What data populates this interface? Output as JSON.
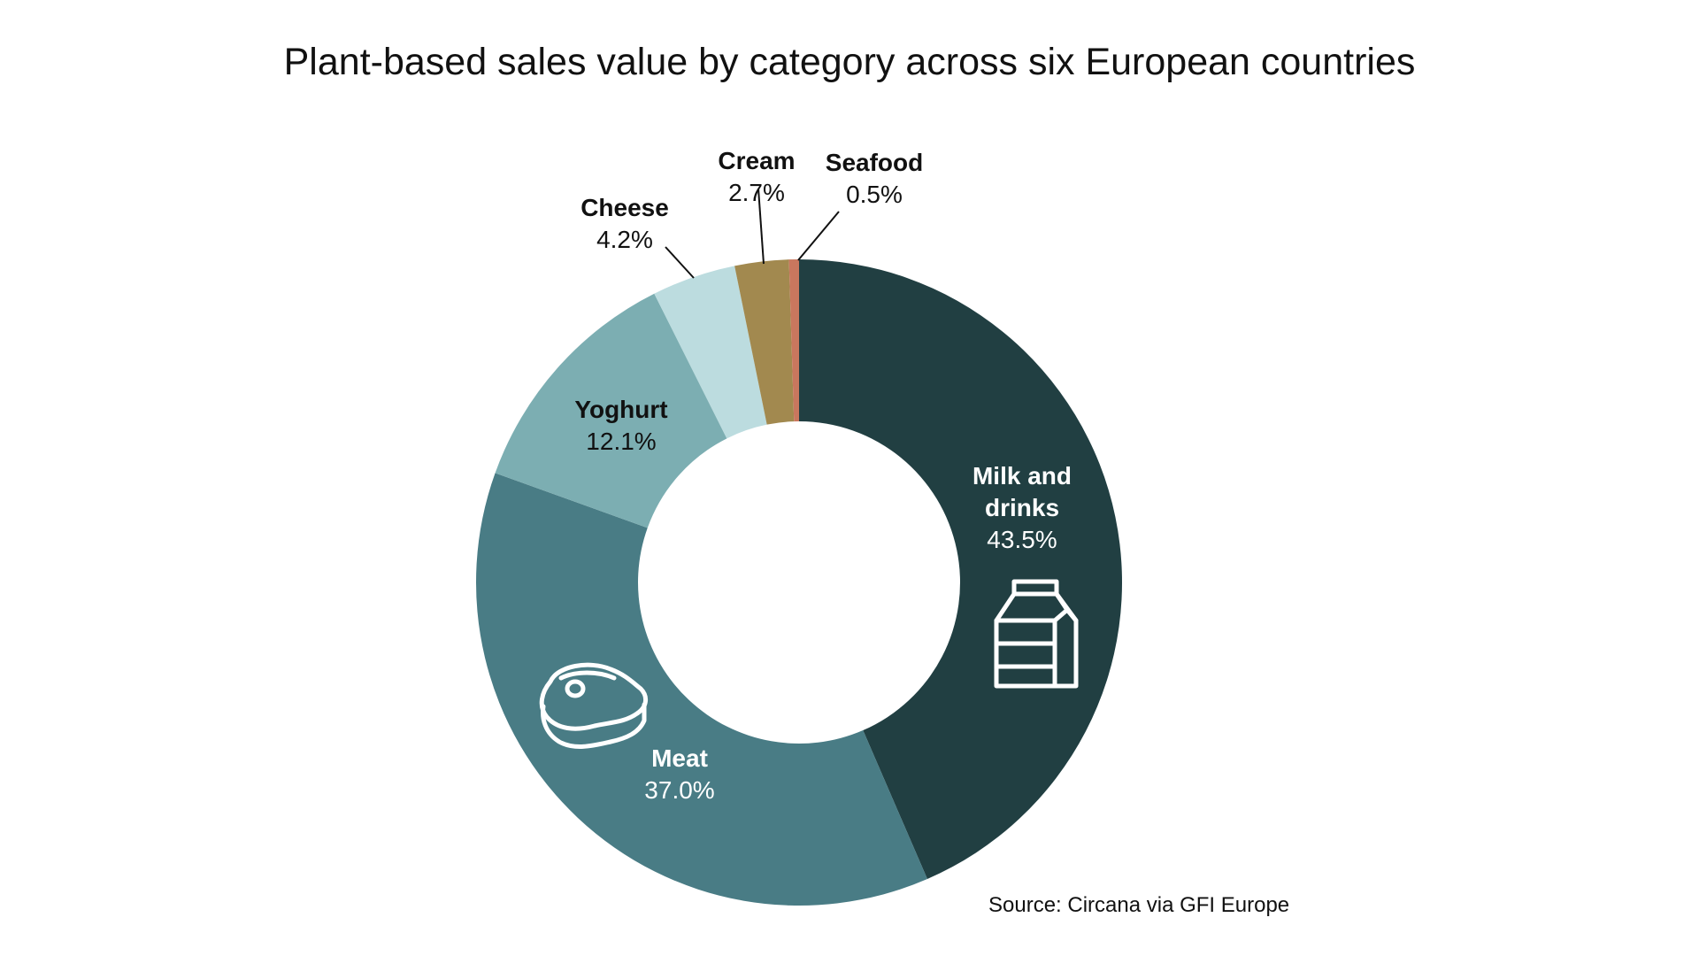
{
  "chart_data": {
    "type": "pie",
    "title": "Plant-based sales value by category across six European countries",
    "subtitle": "",
    "xlabel": "",
    "ylabel": "",
    "legend": "none",
    "grid": false,
    "donut": true,
    "slices": [
      {
        "label_lines": [
          "Milk and",
          "drinks"
        ],
        "value": 43.5,
        "value_text": "43.5%",
        "color": "#213f42",
        "label_color": "#ffffff",
        "icon": "milk-carton-icon"
      },
      {
        "label_lines": [
          "Meat"
        ],
        "value": 37.0,
        "value_text": "37.0%",
        "color": "#497c85",
        "label_color": "#ffffff",
        "icon": "steak-icon"
      },
      {
        "label_lines": [
          "Yoghurt"
        ],
        "value": 12.1,
        "value_text": "12.1%",
        "color": "#7caeb2",
        "label_color": "#111111",
        "icon": ""
      },
      {
        "label_lines": [
          "Cheese"
        ],
        "value": 4.2,
        "value_text": "4.2%",
        "color": "#bcdcdf",
        "label_color": "#111111",
        "icon": ""
      },
      {
        "label_lines": [
          "Cream"
        ],
        "value": 2.7,
        "value_text": "2.7%",
        "color": "#a2894f",
        "label_color": "#111111",
        "icon": ""
      },
      {
        "label_lines": [
          "Seafood"
        ],
        "value": 0.5,
        "value_text": "0.5%",
        "color": "#c9775e",
        "label_color": "#111111",
        "icon": ""
      }
    ],
    "source": "Source: Circana via GFI Europe"
  }
}
